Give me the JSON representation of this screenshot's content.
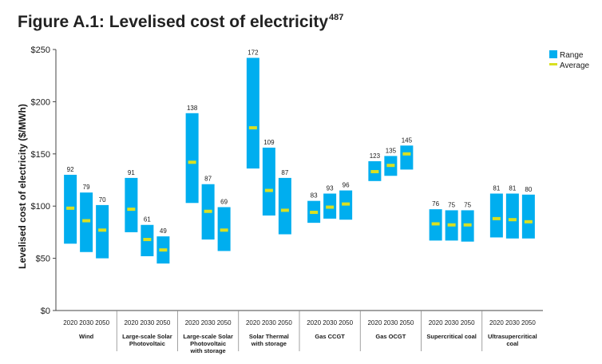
{
  "header": {
    "title": "Figure A.1: Levelised cost of electricity",
    "title_sup": "487"
  },
  "colors": {
    "range": "#00aeef",
    "average": "#d9e021",
    "axis": "#444444",
    "text": "#1a1a1a",
    "grid": "#d6d6d6"
  },
  "chart_data": {
    "type": "bar",
    "title": "Figure A.1: Levelised cost of electricity",
    "ylabel": "Levelised cost of electricity ($/MWh)",
    "ylim": [
      0,
      250
    ],
    "yticks": [
      0,
      50,
      100,
      150,
      200,
      250
    ],
    "ytick_labels": [
      "$0",
      "$50",
      "$100",
      "$150",
      "$200",
      "$250"
    ],
    "grid": "vertical separators only",
    "legend": [
      {
        "name": "Range",
        "color": "#00aeef"
      },
      {
        "name": "Average",
        "color": "#d9e021"
      }
    ],
    "legend_position": "top-right",
    "groups": [
      {
        "name": "Wind",
        "label_lines": [
          "Wind"
        ],
        "years": [
          "2020",
          "2030",
          "2050"
        ],
        "ranges": [
          [
            64,
            130
          ],
          [
            56,
            113
          ],
          [
            50,
            101
          ]
        ],
        "averages": [
          98,
          86,
          77
        ],
        "labels": [
          "92",
          "79",
          "70"
        ]
      },
      {
        "name": "Large-scale Solar Photovoltaic",
        "label_lines": [
          "Large-scale Solar",
          "Photovoltaic"
        ],
        "years": [
          "2020",
          "2030",
          "2050"
        ],
        "ranges": [
          [
            75,
            127
          ],
          [
            52,
            82
          ],
          [
            45,
            71
          ]
        ],
        "averages": [
          97,
          68,
          58
        ],
        "labels": [
          "91",
          "61",
          "49"
        ]
      },
      {
        "name": "Large-scale Solar Photovoltaic with storage",
        "label_lines": [
          "Large-scale Solar",
          "Photovoltaic",
          "with storage"
        ],
        "years": [
          "2020",
          "2030",
          "2050"
        ],
        "ranges": [
          [
            103,
            189
          ],
          [
            68,
            121
          ],
          [
            57,
            99
          ]
        ],
        "averages": [
          142,
          95,
          77
        ],
        "labels": [
          "138",
          "87",
          "69"
        ]
      },
      {
        "name": "Solar Thermal with storage",
        "label_lines": [
          "Solar Thermal",
          "with storage"
        ],
        "years": [
          "2020",
          "2030",
          "2050"
        ],
        "ranges": [
          [
            136,
            242
          ],
          [
            91,
            156
          ],
          [
            73,
            127
          ]
        ],
        "averages": [
          175,
          115,
          96
        ],
        "labels": [
          "172",
          "109",
          "87"
        ]
      },
      {
        "name": "Gas CCGT",
        "label_lines": [
          "Gas CCGT"
        ],
        "years": [
          "2020",
          "2030",
          "2050"
        ],
        "ranges": [
          [
            84,
            105
          ],
          [
            88,
            112
          ],
          [
            87,
            115
          ]
        ],
        "averages": [
          94,
          99,
          102
        ],
        "labels": [
          "83",
          "93",
          "96"
        ]
      },
      {
        "name": "Gas OCGT",
        "label_lines": [
          "Gas OCGT"
        ],
        "years": [
          "2020",
          "2030",
          "2050"
        ],
        "ranges": [
          [
            124,
            143
          ],
          [
            129,
            148
          ],
          [
            135,
            158
          ]
        ],
        "averages": [
          133,
          139,
          150
        ],
        "labels": [
          "123",
          "135",
          "145"
        ]
      },
      {
        "name": "Supercritical coal",
        "label_lines": [
          "Supercritical coal"
        ],
        "years": [
          "2020",
          "2030",
          "2050"
        ],
        "ranges": [
          [
            67,
            97
          ],
          [
            67,
            96
          ],
          [
            66,
            96
          ]
        ],
        "averages": [
          83,
          82,
          82
        ],
        "labels": [
          "76",
          "75",
          "75"
        ]
      },
      {
        "name": "Ultrasupercritical coal",
        "label_lines": [
          "Ultrasupercritical",
          "coal"
        ],
        "years": [
          "2020",
          "2030",
          "2050"
        ],
        "ranges": [
          [
            70,
            112
          ],
          [
            69,
            112
          ],
          [
            69,
            111
          ]
        ],
        "averages": [
          88,
          87,
          85
        ],
        "labels": [
          "81",
          "81",
          "80"
        ]
      }
    ]
  }
}
